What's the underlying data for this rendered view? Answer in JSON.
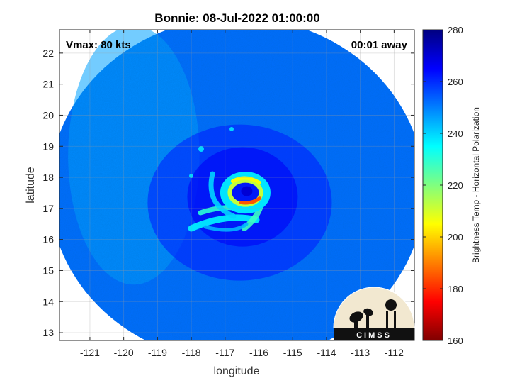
{
  "chart_data": {
    "type": "heatmap",
    "title": "Bonnie: 08-Jul-2022 01:00:00",
    "xlabel": "longitude",
    "ylabel": "latitude",
    "xlim": [
      -121.9,
      -111.4
    ],
    "ylim": [
      12.75,
      22.75
    ],
    "x_ticks": [
      -121,
      -120,
      -119,
      -118,
      -117,
      -116,
      -115,
      -114,
      -113,
      -112
    ],
    "y_ticks": [
      13,
      14,
      15,
      16,
      17,
      18,
      19,
      20,
      21,
      22
    ],
    "grid": true,
    "annotations": {
      "top_left": "Vmax: 80 kts",
      "top_right": "00:01 away"
    },
    "colorbar": {
      "label": "Brightness Temp - Horizontal Polarization",
      "range": [
        160,
        280
      ],
      "ticks": [
        280,
        260,
        240,
        220,
        200,
        180,
        160
      ],
      "colormap": "jet"
    },
    "storm_center": {
      "lon": -116.4,
      "lat": 17.6
    },
    "swath_center": {
      "lon": -116.65,
      "lat": 17.6
    },
    "swath_radius_deg": 5.55,
    "background_bt": 252,
    "eyewall_min_bt": 185
  },
  "logo": {
    "text": "CIMSS"
  }
}
